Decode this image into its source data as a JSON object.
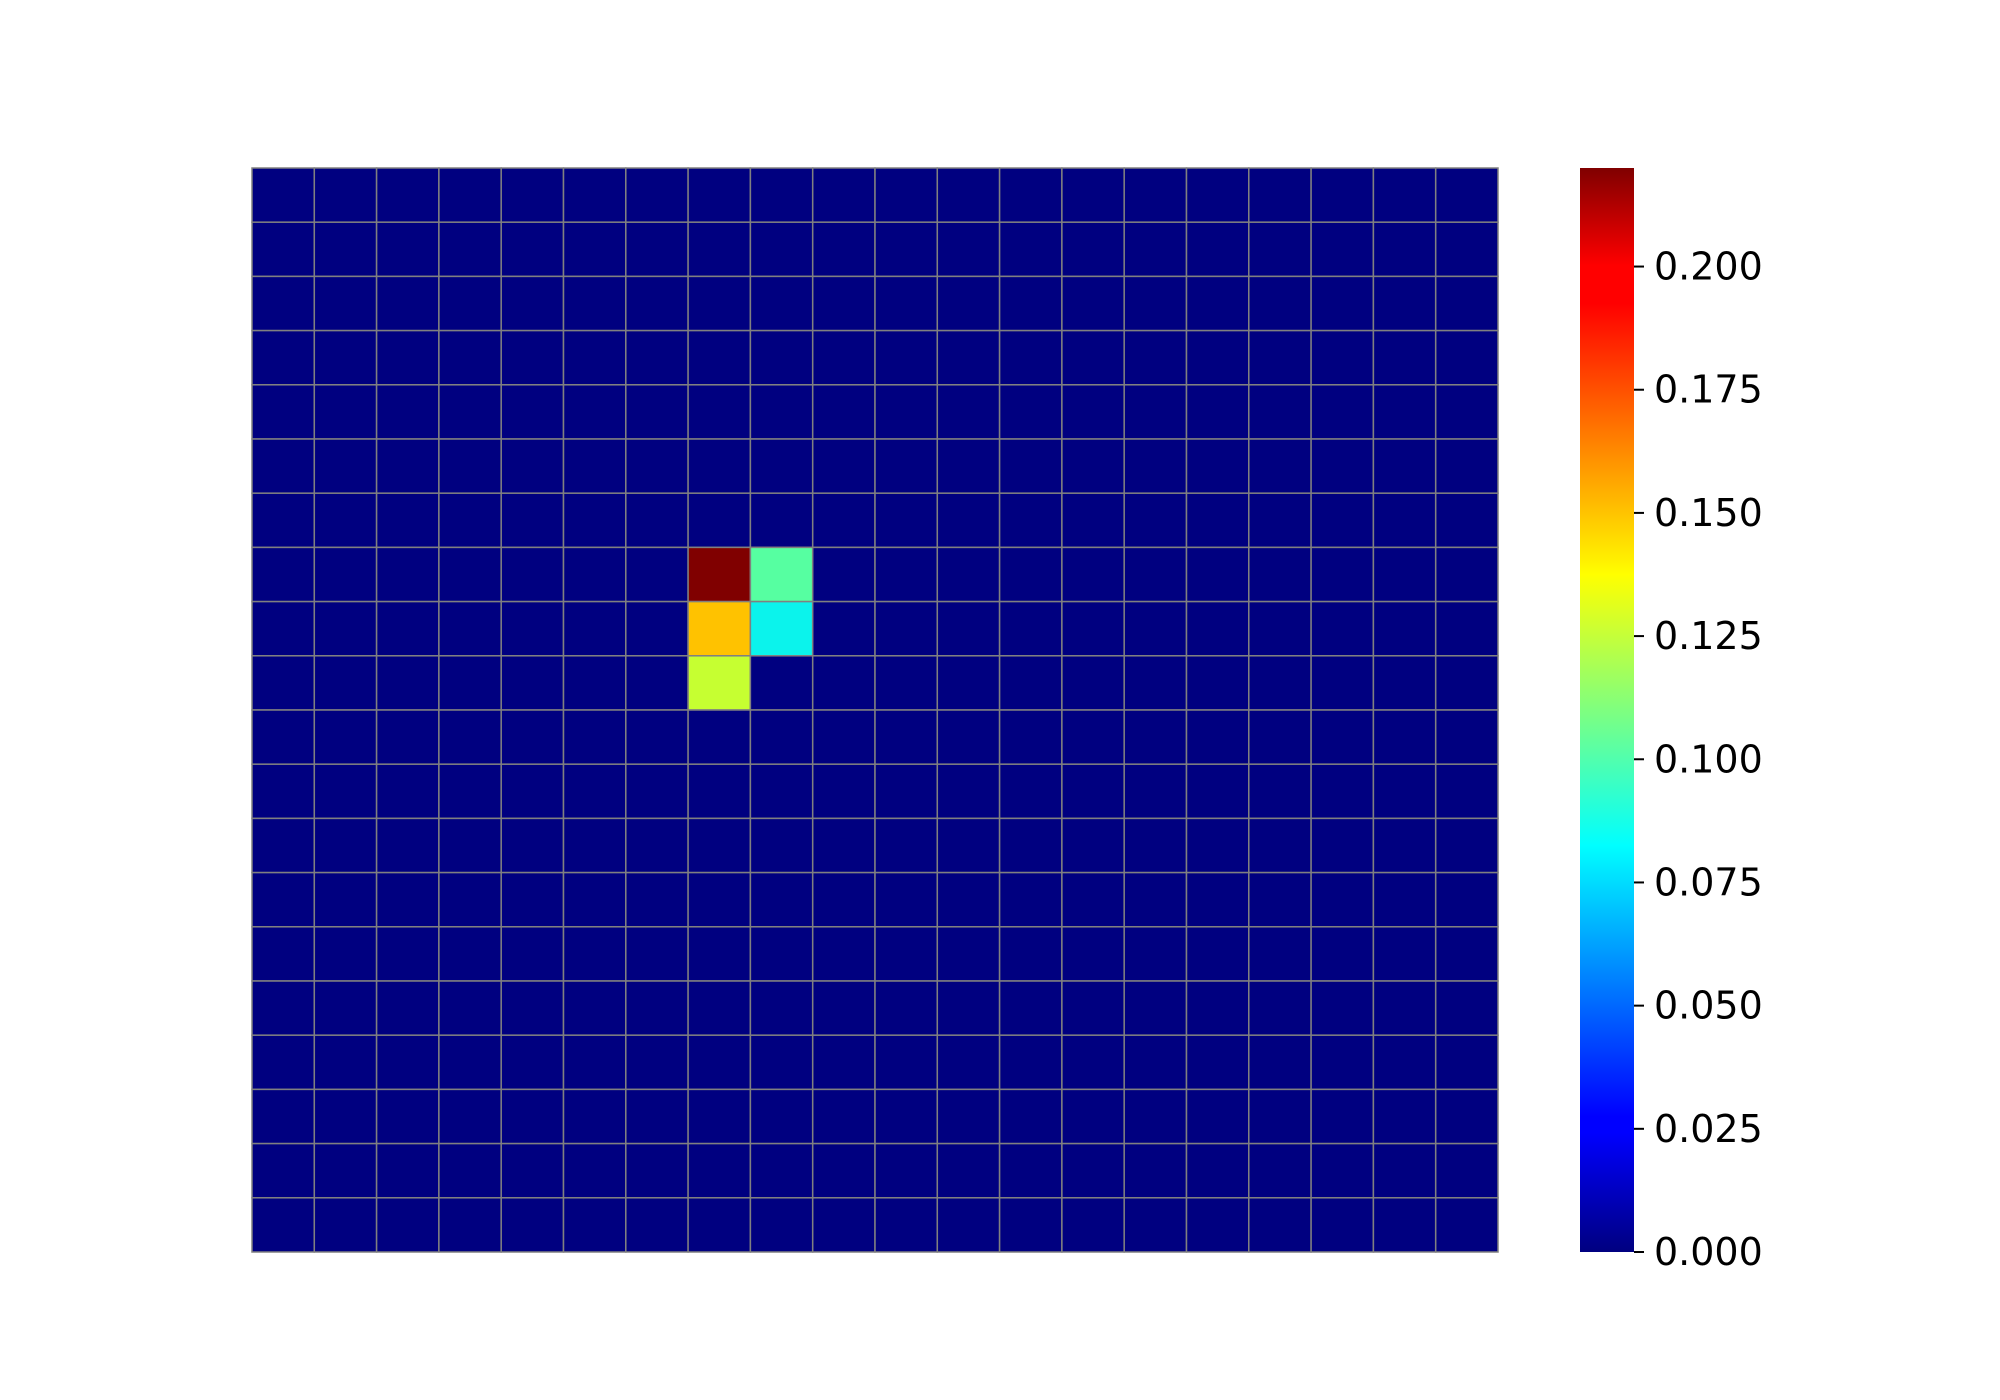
{
  "chart_data": {
    "type": "heatmap",
    "rows": 20,
    "cols": 20,
    "colormap": "jet",
    "grid": true,
    "grid_color": "#808080",
    "colorbar": {
      "placement": "right",
      "vmin": 0.0,
      "vmax": 0.22,
      "ticks": [
        0.0,
        0.025,
        0.05,
        0.075,
        0.1,
        0.125,
        0.15,
        0.175,
        0.2
      ],
      "tick_labels": [
        "0.000",
        "0.025",
        "0.050",
        "0.075",
        "0.100",
        "0.125",
        "0.150",
        "0.175",
        "0.200"
      ]
    },
    "default_value": 0.0,
    "nonzero_cells": [
      {
        "row": 7,
        "col": 7,
        "value": 0.22
      },
      {
        "row": 7,
        "col": 8,
        "value": 0.1
      },
      {
        "row": 8,
        "col": 7,
        "value": 0.155
      },
      {
        "row": 8,
        "col": 8,
        "value": 0.08
      },
      {
        "row": 9,
        "col": 7,
        "value": 0.13
      }
    ]
  }
}
